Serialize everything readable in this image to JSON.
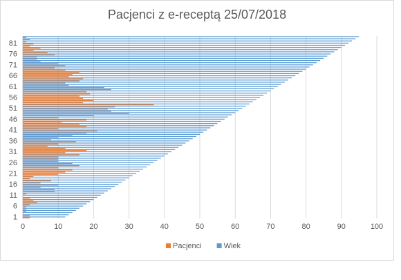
{
  "chart_data": {
    "type": "hbar",
    "title": "Pacjenci z e-receptą  25/07/2018",
    "categories": [
      "1",
      null,
      null,
      null,
      null,
      "6",
      null,
      null,
      null,
      null,
      "11",
      null,
      null,
      null,
      null,
      "16",
      null,
      null,
      null,
      null,
      "21",
      null,
      null,
      null,
      null,
      "26",
      null,
      null,
      null,
      null,
      "31",
      null,
      null,
      null,
      null,
      "36",
      null,
      null,
      null,
      null,
      "41",
      null,
      null,
      null,
      null,
      "46",
      null,
      null,
      null,
      null,
      "51",
      null,
      null,
      null,
      null,
      "56",
      null,
      null,
      null,
      null,
      "61",
      null,
      null,
      null,
      null,
      "66",
      null,
      null,
      null,
      null,
      "71",
      null,
      null,
      null,
      null,
      "76",
      null,
      null,
      null,
      null,
      "81",
      null,
      null,
      null
    ],
    "series": [
      {
        "name": "Pacjenci",
        "color": "#ed7d31",
        "values": [
          2,
          2,
          0,
          1,
          1,
          1,
          2,
          4,
          3,
          2,
          0,
          1,
          9,
          9,
          5,
          10,
          5,
          8,
          2,
          3,
          10,
          12,
          14,
          10,
          16,
          14,
          10,
          10,
          10,
          16,
          12,
          18,
          12,
          7,
          10,
          15,
          8,
          10,
          14,
          18,
          21,
          10,
          18,
          16,
          11,
          18,
          10,
          20,
          30,
          25,
          24,
          26,
          37,
          17,
          20,
          17,
          16,
          19,
          18,
          25,
          23,
          13,
          12,
          16,
          17,
          13,
          14,
          16,
          12,
          9,
          12,
          10,
          5,
          4,
          4,
          9,
          7,
          3,
          5,
          2,
          3,
          1,
          2,
          1
        ]
      },
      {
        "name": "Wiek",
        "color": "#5b9bd5",
        "values": [
          12,
          13,
          14,
          15,
          16,
          17,
          18,
          19,
          20,
          21,
          22,
          23,
          24,
          25,
          26,
          27,
          28,
          29,
          30,
          31,
          32,
          33,
          34,
          35,
          36,
          37,
          38,
          39,
          40,
          41,
          42,
          43,
          44,
          45,
          46,
          47,
          48,
          49,
          50,
          51,
          52,
          53,
          54,
          55,
          56,
          57,
          58,
          59,
          60,
          61,
          62,
          63,
          64,
          65,
          66,
          67,
          68,
          69,
          70,
          71,
          72,
          73,
          74,
          75,
          76,
          77,
          78,
          79,
          80,
          81,
          82,
          83,
          84,
          85,
          86,
          87,
          88,
          89,
          90,
          91,
          92,
          93,
          94,
          95
        ]
      }
    ],
    "xlim": [
      0,
      100
    ],
    "xticks": [
      0,
      10,
      20,
      30,
      40,
      50,
      60,
      70,
      80,
      90,
      100
    ],
    "grid": true,
    "legend": "bottom"
  }
}
